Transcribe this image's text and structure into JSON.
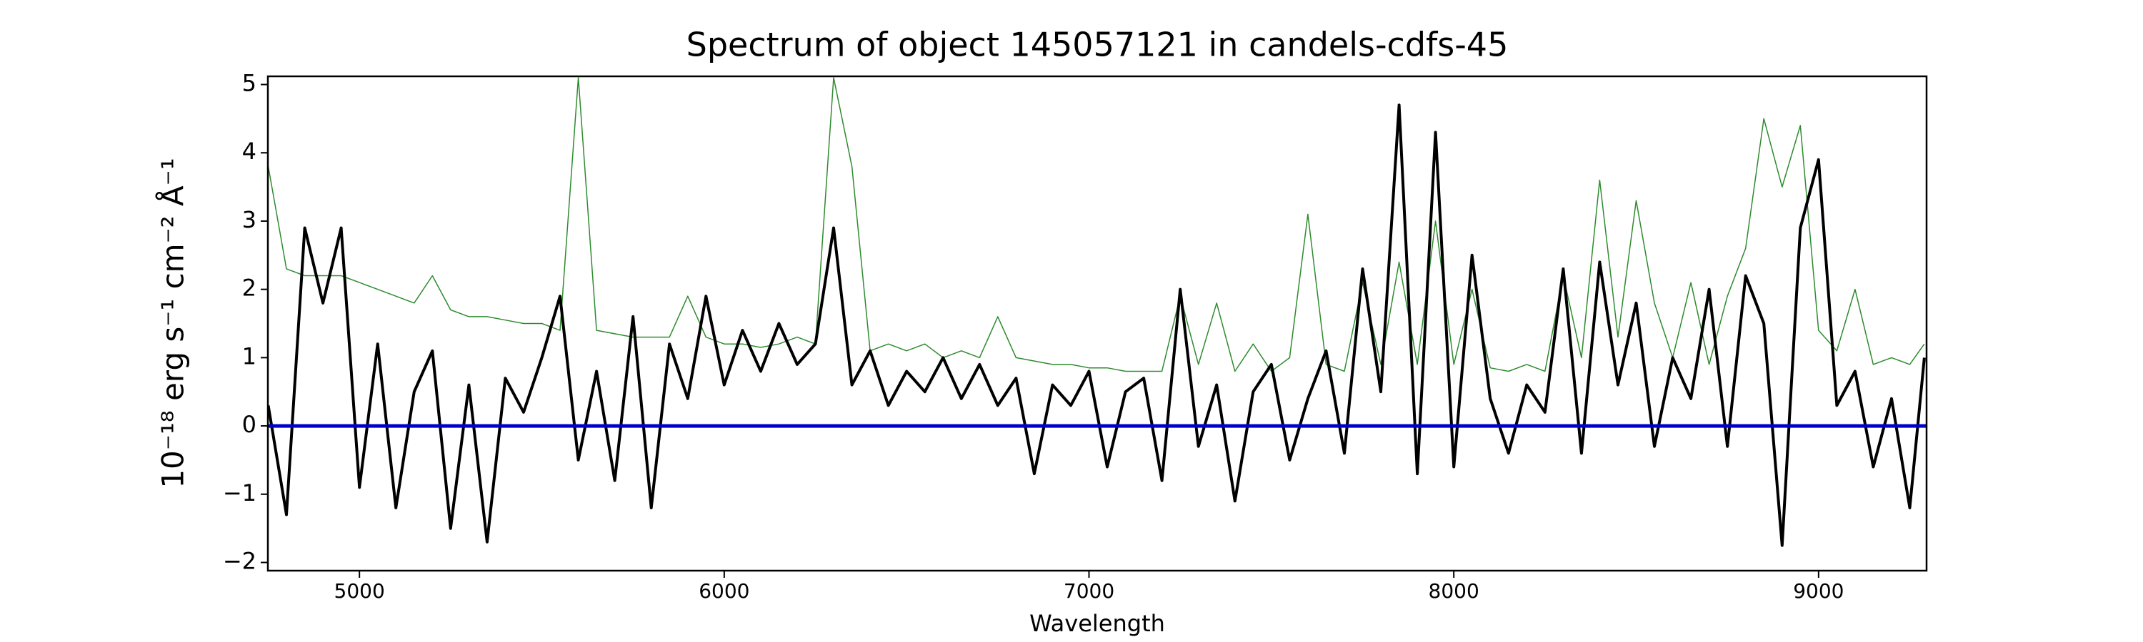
{
  "chart_data": {
    "type": "line",
    "title": "Spectrum of object 145057121 in candels-cdfs-45",
    "xlabel": "Wavelength",
    "ylabel": "10⁻¹⁸ erg s⁻¹ cm⁻² Å⁻¹",
    "x": [
      4750,
      4800,
      4850,
      4900,
      4950,
      5000,
      5050,
      5100,
      5150,
      5200,
      5250,
      5300,
      5350,
      5400,
      5450,
      5500,
      5550,
      5600,
      5650,
      5700,
      5750,
      5800,
      5850,
      5900,
      5950,
      6000,
      6050,
      6100,
      6150,
      6200,
      6250,
      6300,
      6350,
      6400,
      6450,
      6500,
      6550,
      6600,
      6650,
      6700,
      6750,
      6800,
      6850,
      6900,
      6950,
      7000,
      7050,
      7100,
      7150,
      7200,
      7250,
      7300,
      7350,
      7400,
      7450,
      7500,
      7550,
      7600,
      7650,
      7700,
      7750,
      7800,
      7850,
      7900,
      7950,
      8000,
      8050,
      8100,
      8150,
      8200,
      8250,
      8300,
      8350,
      8400,
      8450,
      8500,
      8550,
      8600,
      8650,
      8700,
      8750,
      8800,
      8850,
      8900,
      8950,
      9000,
      9050,
      9100,
      9150,
      9200,
      9250,
      9290
    ],
    "series": [
      {
        "color": "#2e8b2e",
        "width": 1.5,
        "values": [
          3.8,
          2.3,
          2.2,
          2.2,
          2.2,
          2.1,
          2.0,
          1.9,
          1.8,
          2.2,
          1.7,
          1.6,
          1.6,
          1.55,
          1.5,
          1.5,
          1.4,
          5.1,
          1.4,
          1.35,
          1.3,
          1.3,
          1.3,
          1.9,
          1.3,
          1.2,
          1.2,
          1.15,
          1.2,
          1.3,
          1.2,
          5.1,
          3.8,
          1.1,
          1.2,
          1.1,
          1.2,
          1.0,
          1.1,
          1.0,
          1.6,
          1.0,
          0.95,
          0.9,
          0.9,
          0.85,
          0.85,
          0.8,
          0.8,
          0.8,
          1.9,
          0.9,
          1.8,
          0.8,
          1.2,
          0.8,
          1.0,
          3.1,
          0.9,
          0.8,
          2.1,
          0.9,
          2.4,
          0.9,
          3.0,
          0.9,
          2.0,
          0.85,
          0.8,
          0.9,
          0.8,
          2.2,
          1.0,
          3.6,
          1.3,
          3.3,
          1.8,
          1.0,
          2.1,
          0.9,
          1.9,
          2.6,
          4.5,
          3.5,
          4.4,
          1.4,
          1.1,
          2.0,
          0.9,
          1.0,
          0.9,
          1.2
        ]
      },
      {
        "color": "#000000",
        "width": 4,
        "values": [
          0.3,
          -1.3,
          2.9,
          1.8,
          2.9,
          -0.9,
          1.2,
          -1.2,
          0.5,
          1.1,
          -1.5,
          0.6,
          -1.7,
          0.7,
          0.2,
          1.0,
          1.9,
          -0.5,
          0.8,
          -0.8,
          1.6,
          -1.2,
          1.2,
          0.4,
          1.9,
          0.6,
          1.4,
          0.8,
          1.5,
          0.9,
          1.2,
          2.9,
          0.6,
          1.1,
          0.3,
          0.8,
          0.5,
          1.0,
          0.4,
          0.9,
          0.3,
          0.7,
          -0.7,
          0.6,
          0.3,
          0.8,
          -0.6,
          0.5,
          0.7,
          -0.8,
          2.0,
          -0.3,
          0.6,
          -1.1,
          0.5,
          0.9,
          -0.5,
          0.4,
          1.1,
          -0.4,
          2.3,
          0.5,
          4.7,
          -0.7,
          4.3,
          -0.6,
          2.5,
          0.4,
          -0.4,
          0.6,
          0.2,
          2.3,
          -0.4,
          2.4,
          0.6,
          1.8,
          -0.3,
          1.0,
          0.4,
          2.0,
          -0.3,
          2.2,
          1.5,
          -1.75,
          2.9,
          3.9,
          0.3,
          0.8,
          -0.6,
          0.4,
          -1.2,
          1.0
        ]
      }
    ],
    "hlines": [
      {
        "y": 0,
        "color": "#0000cc"
      }
    ],
    "xlim": [
      4749,
      9296
    ],
    "ylim": [
      -2.12,
      5.12
    ],
    "xticks": [
      5000,
      6000,
      7000,
      8000,
      9000
    ],
    "yticks": [
      {
        "value": -2,
        "label": "−2"
      },
      {
        "value": -1,
        "label": "−1"
      },
      0,
      1,
      2,
      3,
      4,
      5
    ]
  }
}
